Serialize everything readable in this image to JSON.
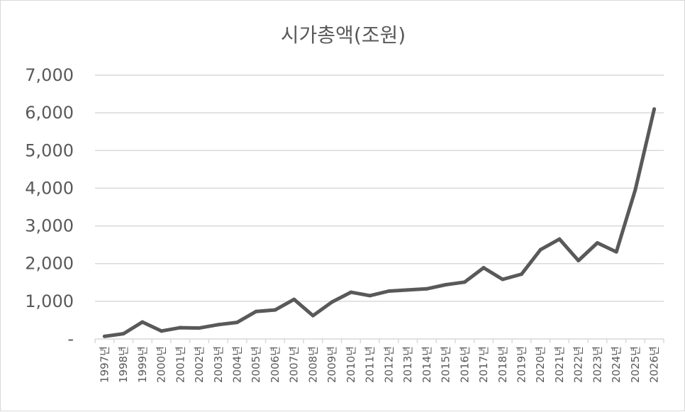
{
  "chart_data": {
    "type": "line",
    "title": "시가총액(조원)",
    "xlabel": "",
    "ylabel": "",
    "categories": [
      "1997년",
      "1998년",
      "1999년",
      "2000년",
      "2001년",
      "2002년",
      "2003년",
      "2004년",
      "2005년",
      "2006년",
      "2007년",
      "2008년",
      "2009년",
      "2010년",
      "2011년",
      "2012년",
      "2013년",
      "2014년",
      "2015년",
      "2016년",
      "2017년",
      "2018년",
      "2019년",
      "2020년",
      "2021년",
      "2022년",
      "2023년",
      "2024년",
      "2025년",
      "2026년"
    ],
    "series": [
      {
        "values": [
          70,
          140,
          450,
          210,
          300,
          290,
          380,
          440,
          730,
          770,
          1050,
          620,
          980,
          1240,
          1150,
          1270,
          1300,
          1330,
          1440,
          1510,
          1890,
          1580,
          1720,
          2370,
          2650,
          2080,
          2550,
          2310,
          3960,
          6100
        ]
      }
    ],
    "yticks": [
      "-",
      "1,000",
      "2,000",
      "3,000",
      "4,000",
      "5,000",
      "6,000",
      "7,000"
    ],
    "ylim": [
      0,
      7000
    ],
    "grid": true,
    "legend": "none",
    "colors": {
      "line": "#595959",
      "grid": "#d9d9d9",
      "text": "#595959"
    }
  }
}
